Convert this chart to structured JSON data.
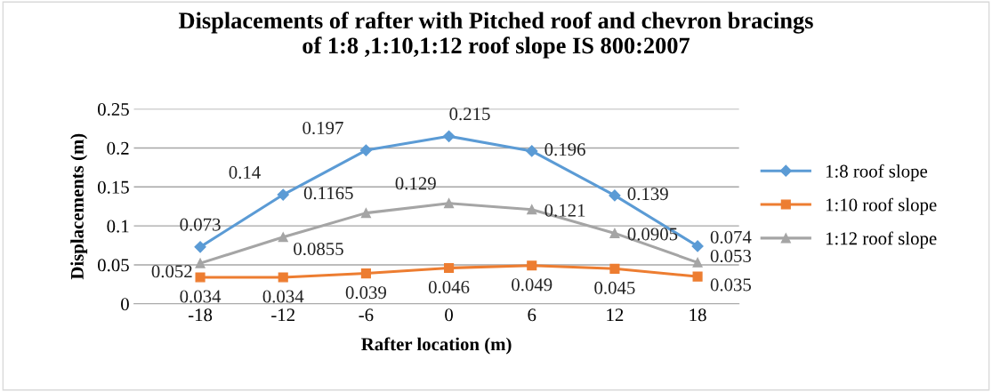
{
  "chart_data": {
    "type": "line",
    "title": "Displacements of rafter with Pitched roof and chevron bracings\nof 1:8 ,1:10,1:12 roof slope IS 800:2007",
    "xlabel": "Rafter location (m)",
    "ylabel": "Displacements (m)",
    "categories": [
      "-18",
      "-12",
      "-6",
      "0",
      "6",
      "12",
      "18"
    ],
    "series": [
      {
        "name": "1:8 roof slope",
        "color": "#5b9bd5",
        "marker": "diamond",
        "values": [
          0.073,
          0.14,
          0.197,
          0.215,
          0.196,
          0.139,
          0.074
        ]
      },
      {
        "name": "1:10 roof slope",
        "color": "#ed7d31",
        "marker": "square",
        "values": [
          0.034,
          0.034,
          0.039,
          0.046,
          0.049,
          0.045,
          0.035
        ]
      },
      {
        "name": "1:12 roof slope",
        "color": "#a5a5a5",
        "marker": "triangle",
        "values": [
          0.052,
          0.0855,
          0.1165,
          0.129,
          0.121,
          0.0905,
          0.053
        ]
      }
    ],
    "ylim": [
      0,
      0.25
    ],
    "yticks": [
      {
        "value": 0,
        "label": "0"
      },
      0.05,
      {
        "value": 0.1,
        "label": "0.1"
      },
      0.15,
      {
        "value": 0.2,
        "label": "0.2"
      },
      0.25
    ],
    "grid": "y",
    "legend": "right",
    "data_labels": true,
    "line_style": "solid"
  }
}
